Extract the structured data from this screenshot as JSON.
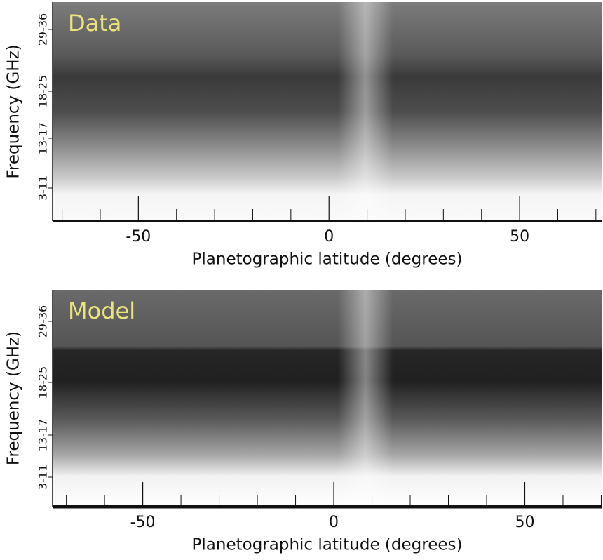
{
  "chart_data": [
    {
      "type": "heatmap",
      "label": "Data",
      "xlabel": "Planetographic latitude (degrees)",
      "ylabel": "Frequency (GHz)",
      "xlim": [
        -72.5,
        71.5
      ],
      "xticks": [
        -50,
        0,
        50
      ],
      "xminorticks": [
        -70,
        -60,
        -40,
        -30,
        -20,
        -10,
        10,
        20,
        30,
        40,
        60,
        70
      ],
      "y_categories": [
        "3-11",
        "13-17",
        "18-25",
        "29-36"
      ]
    },
    {
      "type": "heatmap",
      "label": "Model",
      "xlabel": "Planetographic latitude (degrees)",
      "ylabel": "Frequency (GHz)",
      "xlim": [
        -73.6,
        70.1
      ],
      "xticks": [
        -50,
        0,
        50
      ],
      "xminorticks": [
        -70,
        -60,
        -40,
        -30,
        -20,
        -10,
        10,
        20,
        30,
        40,
        60,
        70
      ],
      "y_categories": [
        "3-11",
        "13-17",
        "18-25",
        "29-36"
      ]
    }
  ]
}
